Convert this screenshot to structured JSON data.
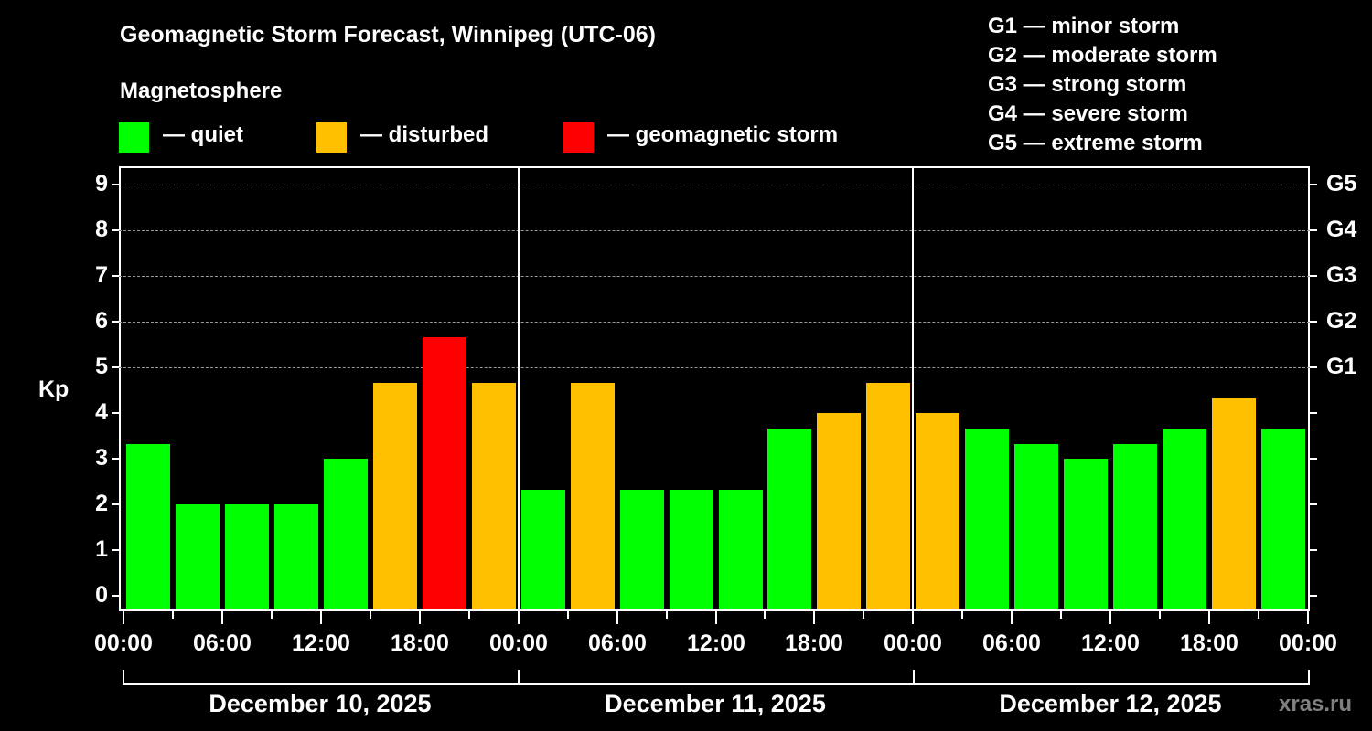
{
  "title": "Geomagnetic Storm Forecast, Winnipeg (UTC-06)",
  "legend": {
    "heading": "Magnetosphere",
    "items": [
      {
        "label": "— quiet",
        "color": "#00ff00"
      },
      {
        "label": "— disturbed",
        "color": "#ffc000"
      },
      {
        "label": "— geomagnetic storm",
        "color": "#ff0000"
      }
    ]
  },
  "g_scale": [
    "G1 — minor storm",
    "G2 — moderate storm",
    "G3 — strong storm",
    "G4 — severe storm",
    "G5 — extreme storm"
  ],
  "watermark": "xras.ru",
  "chart_data": {
    "type": "bar",
    "title": "Geomagnetic Storm Forecast, Winnipeg (UTC-06)",
    "ylabel": "Kp",
    "ylim": [
      0,
      9
    ],
    "yticks": [
      "0",
      "1",
      "2",
      "3",
      "4",
      "5",
      "6",
      "7",
      "8",
      "9"
    ],
    "right_axis_labels": [
      {
        "kp": 5,
        "label": "G1"
      },
      {
        "kp": 6,
        "label": "G2"
      },
      {
        "kp": 7,
        "label": "G3"
      },
      {
        "kp": 8,
        "label": "G4"
      },
      {
        "kp": 9,
        "label": "G5"
      }
    ],
    "grid": "dashed horizontal at Kp 5-9",
    "xtick_labels": [
      "00:00",
      "06:00",
      "12:00",
      "18:00",
      "00:00",
      "06:00",
      "12:00",
      "18:00",
      "00:00",
      "06:00",
      "12:00",
      "18:00",
      "00:00"
    ],
    "days": [
      "December 10, 2025",
      "December 11, 2025",
      "December 12, 2025"
    ],
    "interval_hours": 3,
    "series": [
      {
        "name": "Kp",
        "values": [
          3.33,
          2.0,
          2.0,
          2.0,
          3.0,
          4.67,
          5.67,
          4.67,
          2.33,
          4.67,
          2.33,
          2.33,
          2.33,
          3.67,
          4.0,
          4.67,
          4.0,
          3.67,
          3.33,
          3.0,
          3.33,
          3.67,
          4.33,
          3.67
        ],
        "levels": [
          "quiet",
          "quiet",
          "quiet",
          "quiet",
          "quiet",
          "disturbed",
          "storm",
          "disturbed",
          "quiet",
          "disturbed",
          "quiet",
          "quiet",
          "quiet",
          "quiet",
          "disturbed",
          "disturbed",
          "disturbed",
          "quiet",
          "quiet",
          "quiet",
          "quiet",
          "quiet",
          "disturbed",
          "quiet"
        ]
      }
    ],
    "colors": {
      "quiet": "#00ff00",
      "disturbed": "#ffc000",
      "storm": "#ff0000"
    }
  }
}
